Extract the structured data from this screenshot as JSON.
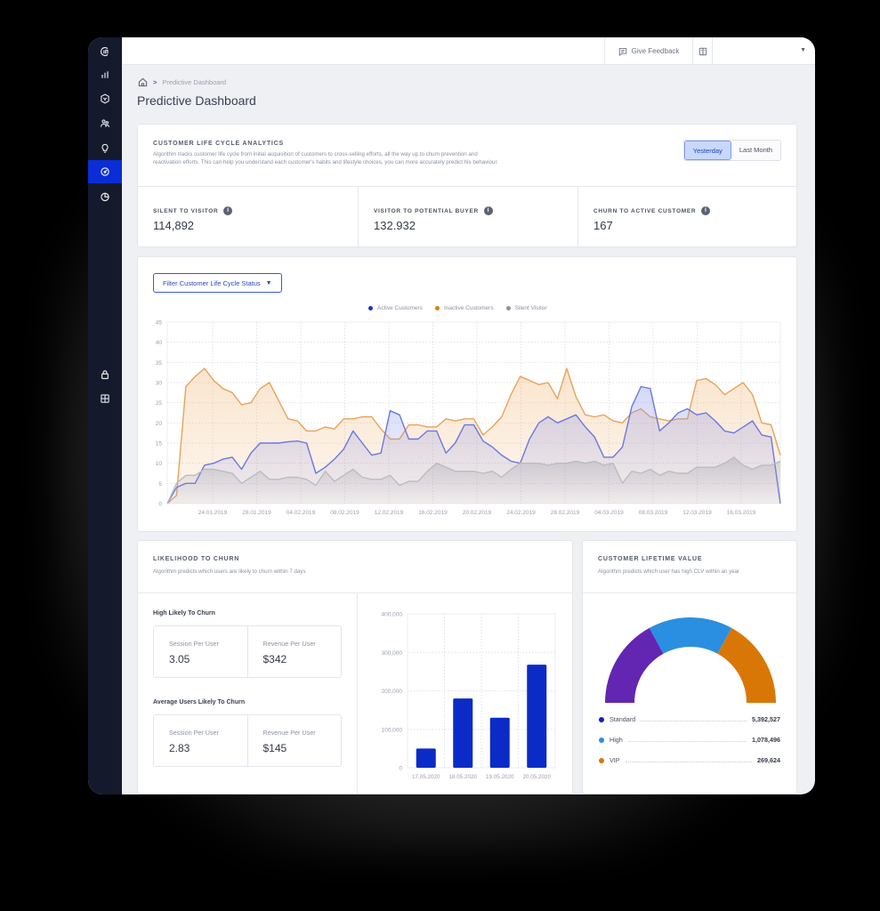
{
  "topbar": {
    "feedback_label": "Give Feedback",
    "feedback_icon": "message-icon",
    "book_icon": "book-icon",
    "user_dropdown_icon": "caret-down-icon"
  },
  "sidebar": {
    "items": [
      {
        "name": "logo",
        "icon": "logo-icon"
      },
      {
        "name": "analytics",
        "icon": "bar-chart-icon"
      },
      {
        "name": "products",
        "icon": "cube-icon"
      },
      {
        "name": "users",
        "icon": "users-icon"
      },
      {
        "name": "insights",
        "icon": "lightbulb-icon"
      },
      {
        "name": "predictive",
        "icon": "gauge-icon",
        "active": true
      },
      {
        "name": "reports",
        "icon": "pie-chart-icon"
      },
      {
        "name": "security",
        "icon": "lock-icon"
      },
      {
        "name": "apps",
        "icon": "grid-icon"
      }
    ]
  },
  "breadcrumb": {
    "home_icon": "home-icon",
    "separator": ">",
    "current": "Predictive Dashboard"
  },
  "page_title": "Predictive Dashboard",
  "lifecycle": {
    "title": "CUSTOMER LIFE CYCLE ANALYTICS",
    "description_line1": "Algorithm tracks customer life cycle from initial acquisition of customers to cross-selling efforts, all the way up to churn prevention and",
    "description_line2": "reactivation efforts. This can help you understand each customer's habits and lifestyle choices, you can more accurately predict his behaviour.",
    "period_options": [
      {
        "label": "Yesterday",
        "active": true
      },
      {
        "label": "Last Month",
        "active": false
      }
    ],
    "kpis": [
      {
        "label": "SILENT TO VISITOR",
        "value": "114,892"
      },
      {
        "label": "VISITOR TO POTENTIAL BUYER",
        "value": "132.932"
      },
      {
        "label": "CHURN TO ACTIVE CUSTOMER",
        "value": "167"
      }
    ]
  },
  "trend": {
    "filter_label": "Filter Customer Life Cycle Status",
    "legend": [
      {
        "label": "Active Customers",
        "color": "#1a33c9"
      },
      {
        "label": "Inactive Customers",
        "color": "#e07e10"
      },
      {
        "label": "Silent Visitor",
        "color": "#8e939e"
      }
    ]
  },
  "churn": {
    "title": "LIKELIHOOD TO CHURN",
    "description": "Algorithm predicts which users are likely to churn within 7 days",
    "groups": [
      {
        "label": "High Likely To Churn",
        "session_label": "Session Per User",
        "session_value": "3.05",
        "revenue_label": "Revenue Per User",
        "revenue_value": "$342"
      },
      {
        "label": "Average Users Likely To Churn",
        "session_label": "Session Per User",
        "session_value": "2.83",
        "revenue_label": "Revenue Per User",
        "revenue_value": "$145"
      }
    ]
  },
  "clv": {
    "title": "CUSTOMER LIFETIME VALUE",
    "description": "Algorithm predicts which user has high CLV within an year",
    "rows": [
      {
        "label": "Standard",
        "value": "5,392,527",
        "color": "#0b22c4"
      },
      {
        "label": "High",
        "value": "1,078,496",
        "color": "#2a8fe0"
      },
      {
        "label": "VIP",
        "value": "269,624",
        "color": "#d97706"
      }
    ]
  },
  "chart_data": [
    {
      "type": "area",
      "title": "Customer Life Cycle Status",
      "xlabel": "",
      "ylabel": "",
      "ylim": [
        0,
        45
      ],
      "yticks": [
        0,
        5,
        10,
        15,
        20,
        25,
        30,
        35,
        40,
        45
      ],
      "xtick_labels": [
        "24.01.2019",
        "28.01.2019",
        "04.02.2019",
        "08.02.2019",
        "12.02.2019",
        "16.02.2019",
        "20.02.2019",
        "24.02.2019",
        "28.02.2019",
        "04.03.2019",
        "08.03.2019",
        "12.03.2019",
        "16.03.2019"
      ],
      "grid": true,
      "legend_position": "top",
      "series": [
        {
          "name": "Active Customers",
          "color": "#5d6fe0",
          "values": [
            0,
            4,
            5,
            5,
            9.5,
            10,
            11,
            11.5,
            8.5,
            12.5,
            15,
            15,
            15,
            15.3,
            15.5,
            15,
            7.5,
            9,
            11,
            13.5,
            18,
            15,
            12,
            12.5,
            23,
            22,
            16,
            16,
            18,
            18,
            12.5,
            15,
            19.5,
            19.5,
            15.5,
            14,
            12,
            10.5,
            10,
            16,
            20,
            21.5,
            20,
            21,
            22,
            19,
            16.5,
            11.5,
            11.5,
            14,
            24,
            29,
            28.5,
            18,
            20,
            22.5,
            23.5,
            22,
            22.5,
            20.5,
            18,
            17.5,
            19,
            20.5,
            17,
            16.5,
            0
          ]
        },
        {
          "name": "Inactive Customers",
          "color": "#e8a35a",
          "values": [
            0,
            2,
            29,
            31.5,
            33.5,
            30.5,
            28.5,
            27.5,
            24.5,
            25,
            28.5,
            30,
            25.5,
            21,
            20.5,
            18,
            18,
            19,
            18.5,
            21,
            21,
            21.5,
            21.5,
            18.5,
            16,
            16,
            19.5,
            19.5,
            19,
            19,
            21,
            20.5,
            21,
            21,
            17,
            19,
            21.5,
            27,
            31.5,
            30.5,
            29.5,
            30,
            26,
            33.5,
            26.5,
            22,
            21.5,
            22,
            20.5,
            20,
            22.5,
            23.5,
            21.5,
            21,
            20.5,
            21,
            21,
            30.5,
            31,
            29.5,
            27,
            28.5,
            30,
            27,
            20,
            19.5,
            12
          ]
        },
        {
          "name": "Silent Visitor",
          "color": "#b4b6bd",
          "values": [
            0,
            5,
            7,
            7,
            8.5,
            8.5,
            8,
            7.5,
            5,
            6.5,
            8,
            6,
            6,
            6.5,
            6.5,
            6,
            4.5,
            8,
            5.5,
            7,
            8.5,
            6.5,
            6,
            6,
            7,
            4.5,
            5.5,
            5.5,
            8,
            10,
            9,
            8,
            8,
            8,
            7.5,
            8,
            6.5,
            8.5,
            10,
            10,
            10,
            9.5,
            10,
            10,
            10.5,
            10,
            10.5,
            9.5,
            10,
            5,
            8,
            7.5,
            8.5,
            7,
            8,
            7.5,
            7.5,
            9,
            9,
            9,
            10,
            11.5,
            9.5,
            8.5,
            9.5,
            9.5,
            10.5
          ]
        }
      ]
    },
    {
      "type": "bar",
      "title": "Likelihood To Churn",
      "categories": [
        "17.05.2020",
        "18.05.2020",
        "19.05.2020",
        "20.05.2020"
      ],
      "values": [
        50000,
        180000,
        130000,
        268000
      ],
      "ylim": [
        0,
        400000
      ],
      "yticks": [
        "0",
        "100,000",
        "200,000",
        "300,000",
        "400,000"
      ],
      "color": "#0b2bc7",
      "grid": true
    },
    {
      "type": "pie",
      "title": "Customer Lifetime Value",
      "style": "half-donut",
      "labels": [
        "Standard",
        "High",
        "VIP"
      ],
      "display_colors": [
        "#6226b3",
        "#2a8fe0",
        "#d97706"
      ],
      "visual_shares": [
        0.34,
        0.32,
        0.34
      ],
      "values": [
        5392527,
        1078496,
        269624
      ]
    }
  ]
}
